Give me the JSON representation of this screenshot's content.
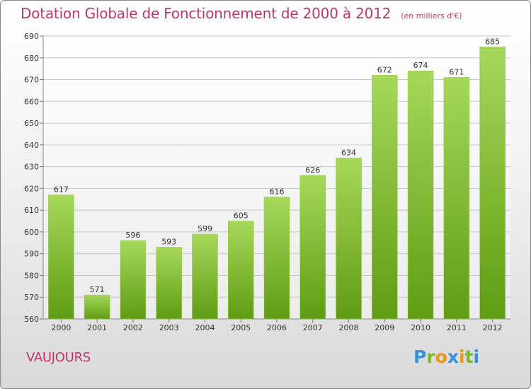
{
  "title": "Dotation Globale de Fonctionnement de 2000 à 2012",
  "unit_label": "(en milliers d'€)",
  "commune": "VAUJOURS",
  "logo": {
    "text": "Proxiti",
    "letter_colors": [
      "#3a8fd9",
      "#7ab82c",
      "#e8961e",
      "#3a8fd9",
      "#e8961e",
      "#7ab82c",
      "#3a8fd9"
    ]
  },
  "colors": {
    "title": "#c0366b",
    "bar_top": "#a6d85a",
    "bar_bottom": "#5f9c14",
    "grid": "#c8c8c8"
  },
  "chart_data": {
    "type": "bar",
    "title": "Dotation Globale de Fonctionnement de 2000 à 2012",
    "xlabel": "",
    "ylabel": "",
    "categories": [
      "2000",
      "2001",
      "2002",
      "2003",
      "2004",
      "2005",
      "2006",
      "2007",
      "2008",
      "2009",
      "2010",
      "2011",
      "2012"
    ],
    "values": [
      617,
      571,
      596,
      593,
      599,
      605,
      616,
      626,
      634,
      672,
      674,
      671,
      685
    ],
    "ylim": [
      560,
      690
    ],
    "yticks": [
      560,
      570,
      580,
      590,
      600,
      610,
      620,
      630,
      640,
      650,
      660,
      670,
      680,
      690
    ],
    "grid": true,
    "legend": "none"
  }
}
